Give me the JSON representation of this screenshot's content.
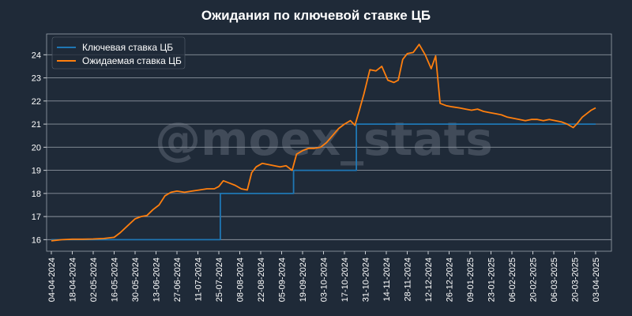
{
  "chart_data": {
    "type": "line",
    "title": "Ожидания по ключевой ставке ЦБ",
    "watermark": "@moex_stats",
    "xlabel": "",
    "ylabel": "",
    "ylim": [
      15.5,
      24.9
    ],
    "yticks": [
      16,
      17,
      18,
      19,
      20,
      21,
      22,
      23,
      24
    ],
    "grid": true,
    "legend_position": "top-left",
    "x_ticks": [
      "04-04-2024",
      "18-04-2024",
      "02-05-2024",
      "16-05-2024",
      "30-05-2024",
      "13-06-2024",
      "27-06-2024",
      "11-07-2024",
      "25-07-2024",
      "08-08-2024",
      "22-08-2024",
      "05-09-2024",
      "19-09-2024",
      "03-10-2024",
      "17-10-2024",
      "31-10-2024",
      "14-11-2024",
      "28-11-2024",
      "12-12-2024",
      "26-12-2024",
      "09-01-2025",
      "23-01-2025",
      "06-02-2025",
      "20-02-2025",
      "06-03-2025",
      "20-03-2025",
      "03-04-2025"
    ],
    "series": [
      {
        "name": "Ключевая ставка ЦБ",
        "color": "#1f77b4",
        "step": true,
        "points": [
          [
            "04-04-2024",
            16
          ],
          [
            "26-07-2024",
            18
          ],
          [
            "13-09-2024",
            19
          ],
          [
            "25-10-2024",
            21
          ],
          [
            "03-04-2025",
            21
          ]
        ]
      },
      {
        "name": "Ожидаемая ставка ЦБ",
        "color": "#ff7f0e",
        "points": [
          [
            "04-04-2024",
            15.95
          ],
          [
            "11-04-2024",
            16.0
          ],
          [
            "18-04-2024",
            16.02
          ],
          [
            "25-04-2024",
            16.02
          ],
          [
            "02-05-2024",
            16.03
          ],
          [
            "09-05-2024",
            16.05
          ],
          [
            "16-05-2024",
            16.1
          ],
          [
            "20-05-2024",
            16.3
          ],
          [
            "25-05-2024",
            16.6
          ],
          [
            "30-05-2024",
            16.9
          ],
          [
            "03-06-2024",
            17.0
          ],
          [
            "07-06-2024",
            17.05
          ],
          [
            "11-06-2024",
            17.3
          ],
          [
            "15-06-2024",
            17.5
          ],
          [
            "19-06-2024",
            17.9
          ],
          [
            "23-06-2024",
            18.05
          ],
          [
            "27-06-2024",
            18.1
          ],
          [
            "02-07-2024",
            18.05
          ],
          [
            "07-07-2024",
            18.1
          ],
          [
            "12-07-2024",
            18.15
          ],
          [
            "17-07-2024",
            18.2
          ],
          [
            "22-07-2024",
            18.2
          ],
          [
            "25-07-2024",
            18.3
          ],
          [
            "28-07-2024",
            18.55
          ],
          [
            "01-08-2024",
            18.45
          ],
          [
            "05-08-2024",
            18.35
          ],
          [
            "09-08-2024",
            18.2
          ],
          [
            "13-08-2024",
            18.15
          ],
          [
            "16-08-2024",
            18.9
          ],
          [
            "19-08-2024",
            19.15
          ],
          [
            "23-08-2024",
            19.3
          ],
          [
            "27-08-2024",
            19.25
          ],
          [
            "31-08-2024",
            19.2
          ],
          [
            "04-09-2024",
            19.15
          ],
          [
            "08-09-2024",
            19.2
          ],
          [
            "12-09-2024",
            19.0
          ],
          [
            "15-09-2024",
            19.7
          ],
          [
            "19-09-2024",
            19.85
          ],
          [
            "23-09-2024",
            19.95
          ],
          [
            "27-09-2024",
            19.95
          ],
          [
            "01-10-2024",
            20.0
          ],
          [
            "05-10-2024",
            20.2
          ],
          [
            "09-10-2024",
            20.5
          ],
          [
            "13-10-2024",
            20.8
          ],
          [
            "17-10-2024",
            21.0
          ],
          [
            "21-10-2024",
            21.15
          ],
          [
            "24-10-2024",
            20.95
          ],
          [
            "27-10-2024",
            21.6
          ],
          [
            "30-10-2024",
            22.3
          ],
          [
            "03-11-2024",
            23.35
          ],
          [
            "07-11-2024",
            23.3
          ],
          [
            "11-11-2024",
            23.5
          ],
          [
            "15-11-2024",
            22.9
          ],
          [
            "19-11-2024",
            22.8
          ],
          [
            "22-11-2024",
            22.9
          ],
          [
            "25-11-2024",
            23.8
          ],
          [
            "28-11-2024",
            24.05
          ],
          [
            "02-12-2024",
            24.1
          ],
          [
            "06-12-2024",
            24.45
          ],
          [
            "10-12-2024",
            24.0
          ],
          [
            "14-12-2024",
            23.4
          ],
          [
            "17-12-2024",
            23.95
          ],
          [
            "20-12-2024",
            21.9
          ],
          [
            "24-12-2024",
            21.8
          ],
          [
            "28-12-2024",
            21.75
          ],
          [
            "02-01-2025",
            21.7
          ],
          [
            "06-01-2025",
            21.65
          ],
          [
            "10-01-2025",
            21.6
          ],
          [
            "14-01-2025",
            21.65
          ],
          [
            "18-01-2025",
            21.55
          ],
          [
            "22-01-2025",
            21.5
          ],
          [
            "26-01-2025",
            21.45
          ],
          [
            "30-01-2025",
            21.4
          ],
          [
            "03-02-2025",
            21.3
          ],
          [
            "07-02-2025",
            21.25
          ],
          [
            "11-02-2025",
            21.2
          ],
          [
            "15-02-2025",
            21.15
          ],
          [
            "19-02-2025",
            21.2
          ],
          [
            "23-02-2025",
            21.2
          ],
          [
            "27-02-2025",
            21.15
          ],
          [
            "03-03-2025",
            21.2
          ],
          [
            "07-03-2025",
            21.15
          ],
          [
            "11-03-2025",
            21.1
          ],
          [
            "15-03-2025",
            21.0
          ],
          [
            "19-03-2025",
            20.85
          ],
          [
            "22-03-2025",
            21.05
          ],
          [
            "25-03-2025",
            21.3
          ],
          [
            "28-03-2025",
            21.45
          ],
          [
            "31-03-2025",
            21.6
          ],
          [
            "03-04-2025",
            21.7
          ]
        ]
      }
    ]
  }
}
